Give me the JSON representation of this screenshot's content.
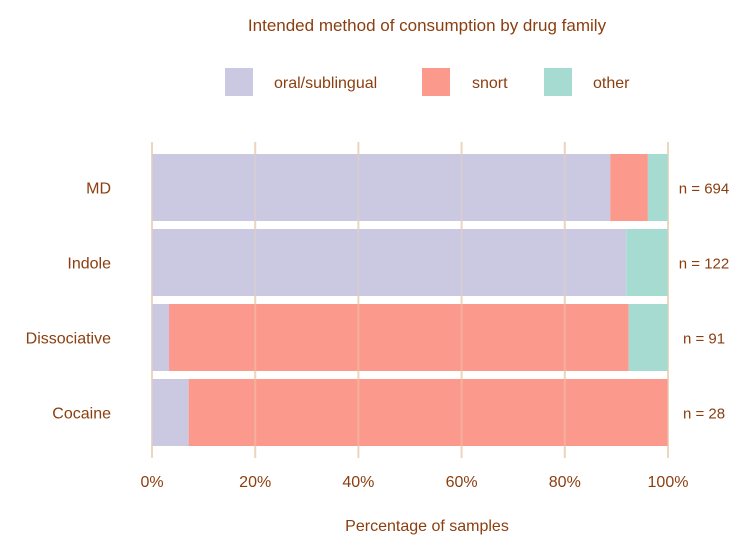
{
  "chart_data": {
    "type": "bar",
    "orientation": "horizontal",
    "stacked": true,
    "title": "Intended method of consumption by drug family",
    "xlabel": "Percentage of samples",
    "ylabel": "",
    "xlim": [
      0,
      100
    ],
    "x_ticks": [
      "0%",
      "20%",
      "40%",
      "60%",
      "80%",
      "100%"
    ],
    "grid": "vertical",
    "legend_position": "top",
    "categories": [
      "MD",
      "Indole",
      "Dissociative",
      "Cocaine"
    ],
    "n_labels": [
      "n = 694",
      "n = 122",
      "n = 91",
      "n = 28"
    ],
    "series": [
      {
        "name": "oral/sublingual",
        "color": "#CBC9E2",
        "values": [
          88.8,
          91.9,
          3.3,
          7.1
        ]
      },
      {
        "name": "snort",
        "color": "#FB9A8C",
        "values": [
          7.3,
          0,
          89.1,
          92.9
        ]
      },
      {
        "name": "other",
        "color": "#A6DBD1",
        "values": [
          3.9,
          8.1,
          7.6,
          0
        ]
      }
    ],
    "text_color": "#8B3E0F",
    "grid_color": "#EDD6BC"
  }
}
